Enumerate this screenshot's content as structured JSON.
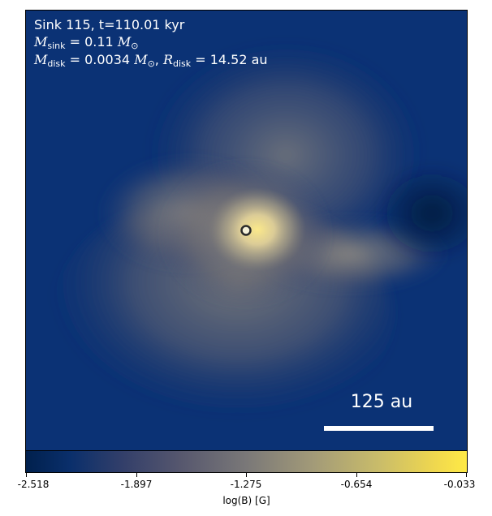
{
  "annotation": {
    "line1": "Sink 115, t=110.01 kyr",
    "m_sink_symbol": "M",
    "m_sink_sub": "sink",
    "m_sink_value": " = 0.11 ",
    "m_sink_unit": "M",
    "m_sink_unit_sub": "⊙",
    "m_disk_symbol": "M",
    "m_disk_sub": "disk",
    "m_disk_value": " = 0.0034 ",
    "m_disk_unit": "M",
    "m_disk_unit_sub": "⊙",
    "m_disk_sep": ", ",
    "r_disk_symbol": "R",
    "r_disk_sub": "disk",
    "r_disk_value": " = 14.52 au"
  },
  "scale_bar": {
    "label": "125 au"
  },
  "colorbar": {
    "label": "log(B) [G]",
    "ticks": [
      "-2.518",
      "-1.897",
      "-1.275",
      "-0.654",
      "-0.033"
    ],
    "colors": {
      "low": "#00204d",
      "mid": "#7a7878",
      "high": "#ffea46"
    }
  },
  "sink_marker": {
    "fill": "#f5f1d8",
    "edge": "#2a2a2a"
  }
}
